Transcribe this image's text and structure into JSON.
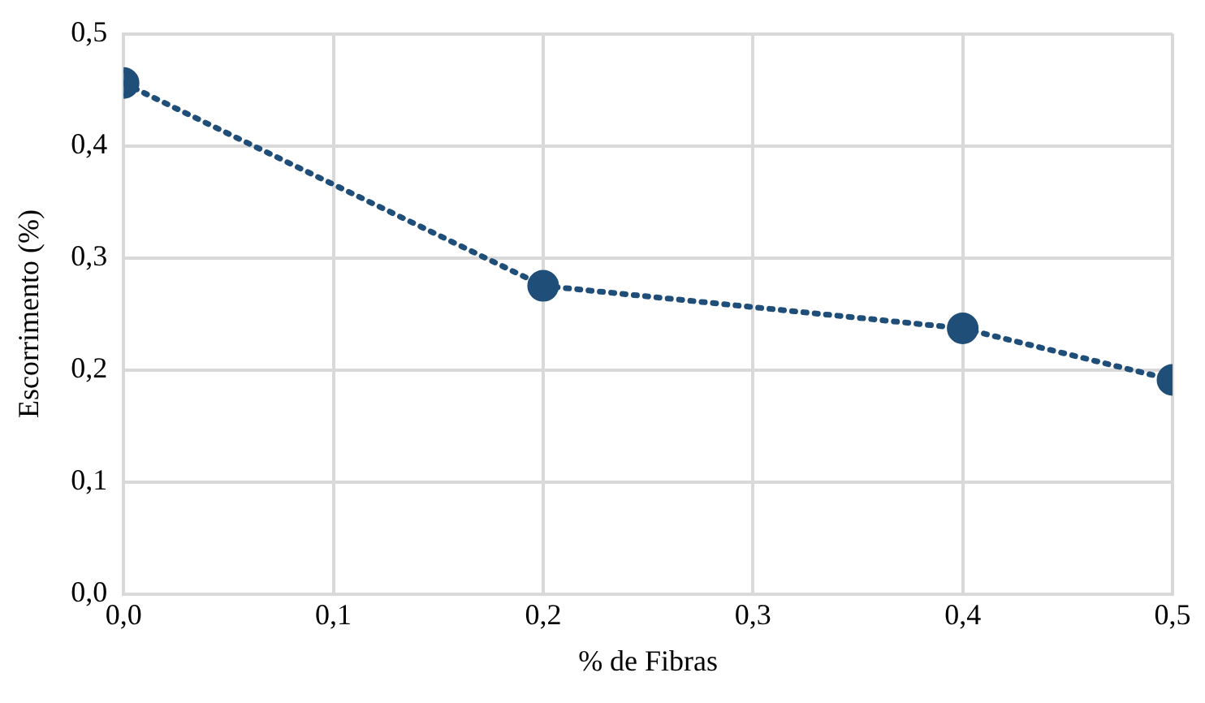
{
  "chart_data": {
    "type": "line",
    "xlabel": "% de Fibras",
    "ylabel": "Escorrimento (%)",
    "x": [
      0,
      0.2,
      0.4,
      0.5
    ],
    "series": [
      {
        "color": "#1f4e79",
        "values": [
          0.456,
          0.275,
          0.237,
          0.191
        ]
      }
    ],
    "xlim": [
      0,
      0.5
    ],
    "xticks": [
      {
        "value": 0,
        "label": "0,0"
      },
      {
        "value": 0.1,
        "label": "0,1"
      },
      {
        "value": 0.2,
        "label": "0,2"
      },
      {
        "value": 0.3,
        "label": "0,3"
      },
      {
        "value": 0.4,
        "label": "0,4"
      },
      {
        "value": 0.5,
        "label": "0,5"
      }
    ],
    "ylim": [
      0,
      0.5
    ],
    "yticks": [
      {
        "value": 0,
        "label": "0,0"
      },
      {
        "value": 0.1,
        "label": "0,1"
      },
      {
        "value": 0.2,
        "label": "0,2"
      },
      {
        "value": 0.3,
        "label": "0,3"
      },
      {
        "value": 0.4,
        "label": "0,4"
      },
      {
        "value": 0.5,
        "label": "0,5"
      }
    ],
    "grid": true,
    "legend": false,
    "marker": "circle",
    "line_style": "dotted"
  }
}
